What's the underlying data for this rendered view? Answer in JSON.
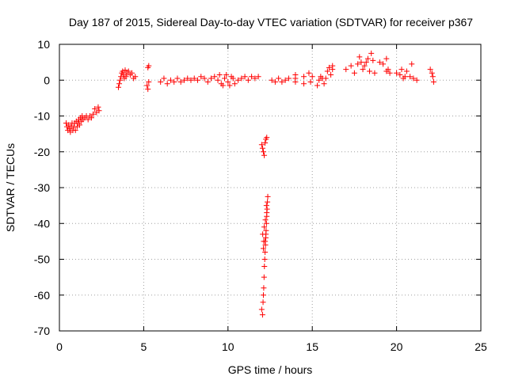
{
  "chart_data": {
    "type": "scatter",
    "title": "Day 187 of 2015, Sidereal Day-to-day VTEC variation (SDTVAR) for receiver p367",
    "xlabel": "GPS time / hours",
    "ylabel": "SDTVAR / TECUs",
    "xlim": [
      0,
      25
    ],
    "ylim": [
      -70,
      10
    ],
    "x_ticks": [
      0,
      5,
      10,
      15,
      20,
      25
    ],
    "x_tick_labels": [
      "0",
      "5",
      "10",
      "15",
      "20",
      "25"
    ],
    "y_ticks": [
      10,
      0,
      -10,
      -20,
      -30,
      -40,
      -50,
      -60,
      -70
    ],
    "y_tick_labels": [
      "10",
      "0",
      "-10",
      "-20",
      "-30",
      "-40",
      "-50",
      "-60",
      "-70"
    ],
    "grid": true,
    "marker": "plus",
    "color": "#ff0000",
    "series": [
      {
        "name": "SDTVAR",
        "points": [
          [
            0.4,
            -12
          ],
          [
            0.45,
            -13
          ],
          [
            0.5,
            -14
          ],
          [
            0.55,
            -12.5
          ],
          [
            0.6,
            -13.5
          ],
          [
            0.65,
            -14.5
          ],
          [
            0.7,
            -13
          ],
          [
            0.75,
            -12
          ],
          [
            0.8,
            -14
          ],
          [
            0.85,
            -13
          ],
          [
            0.9,
            -12
          ],
          [
            0.95,
            -14
          ],
          [
            1.0,
            -11.5
          ],
          [
            1.05,
            -13
          ],
          [
            1.1,
            -12
          ],
          [
            1.15,
            -11
          ],
          [
            1.2,
            -12.5
          ],
          [
            1.25,
            -10.5
          ],
          [
            1.3,
            -11.5
          ],
          [
            1.35,
            -10
          ],
          [
            1.4,
            -11
          ],
          [
            1.5,
            -10.5
          ],
          [
            1.6,
            -10
          ],
          [
            1.7,
            -11
          ],
          [
            1.8,
            -10
          ],
          [
            1.9,
            -10.5
          ],
          [
            2.0,
            -9.5
          ],
          [
            2.1,
            -8
          ],
          [
            2.2,
            -9
          ],
          [
            2.3,
            -7.5
          ],
          [
            2.35,
            -8.5
          ],
          [
            3.5,
            -2
          ],
          [
            3.55,
            -1
          ],
          [
            3.6,
            0
          ],
          [
            3.65,
            1
          ],
          [
            3.7,
            2
          ],
          [
            3.75,
            2.5
          ],
          [
            3.8,
            1.5
          ],
          [
            3.85,
            0.5
          ],
          [
            3.9,
            2.8
          ],
          [
            3.95,
            1
          ],
          [
            4.0,
            2
          ],
          [
            4.1,
            2.5
          ],
          [
            4.2,
            1.5
          ],
          [
            4.3,
            2
          ],
          [
            4.4,
            0.5
          ],
          [
            4.5,
            1
          ],
          [
            5.2,
            -1.5
          ],
          [
            5.25,
            -2.5
          ],
          [
            5.3,
            -0.5
          ],
          [
            5.3,
            4
          ],
          [
            5.25,
            3.5
          ],
          [
            6.0,
            -0.5
          ],
          [
            6.2,
            0.5
          ],
          [
            6.4,
            -1
          ],
          [
            6.6,
            0
          ],
          [
            6.8,
            -0.5
          ],
          [
            7.0,
            0.5
          ],
          [
            7.2,
            -0.5
          ],
          [
            7.4,
            0
          ],
          [
            7.6,
            0.5
          ],
          [
            7.8,
            0
          ],
          [
            8.0,
            0.5
          ],
          [
            8.2,
            0
          ],
          [
            8.4,
            1
          ],
          [
            8.6,
            0.5
          ],
          [
            8.8,
            -0.5
          ],
          [
            9.0,
            0.5
          ],
          [
            9.2,
            1
          ],
          [
            9.4,
            0
          ],
          [
            9.6,
            -1
          ],
          [
            9.8,
            0.5
          ],
          [
            10.0,
            -0.5
          ],
          [
            10.2,
            1
          ],
          [
            10.4,
            -1
          ],
          [
            10.6,
            0
          ],
          [
            10.8,
            0.5
          ],
          [
            11.0,
            1
          ],
          [
            11.2,
            0
          ],
          [
            11.4,
            1
          ],
          [
            11.6,
            0.5
          ],
          [
            11.8,
            1
          ],
          [
            9.5,
            1.5
          ],
          [
            9.7,
            -1.5
          ],
          [
            9.9,
            1.5
          ],
          [
            10.1,
            -1.5
          ],
          [
            10.3,
            0.5
          ],
          [
            12.0,
            -18
          ],
          [
            12.05,
            -19
          ],
          [
            12.1,
            -20
          ],
          [
            12.15,
            -21
          ],
          [
            12.2,
            -17.5
          ],
          [
            12.25,
            -16.5
          ],
          [
            12.3,
            -16
          ],
          [
            12.0,
            -64
          ],
          [
            12.05,
            -65.5
          ],
          [
            12.08,
            -62
          ],
          [
            12.1,
            -60
          ],
          [
            12.12,
            -58
          ],
          [
            12.14,
            -55
          ],
          [
            12.16,
            -52
          ],
          [
            12.18,
            -50
          ],
          [
            12.2,
            -48
          ],
          [
            12.22,
            -46
          ],
          [
            12.24,
            -44
          ],
          [
            12.26,
            -42
          ],
          [
            12.28,
            -40
          ],
          [
            12.3,
            -38
          ],
          [
            12.32,
            -36
          ],
          [
            12.34,
            -34
          ],
          [
            12.36,
            -32.5
          ],
          [
            12.2,
            -45
          ],
          [
            12.25,
            -43
          ],
          [
            12.1,
            -47
          ],
          [
            12.15,
            -41
          ],
          [
            12.22,
            -39
          ],
          [
            12.3,
            -37
          ],
          [
            12.28,
            -35
          ],
          [
            12.06,
            -43
          ],
          [
            12.12,
            -45
          ],
          [
            12.6,
            0
          ],
          [
            12.8,
            -0.5
          ],
          [
            13.0,
            0.5
          ],
          [
            13.2,
            -0.5
          ],
          [
            13.4,
            0
          ],
          [
            13.6,
            0.5
          ],
          [
            14.0,
            -0.5
          ],
          [
            14.0,
            0.5
          ],
          [
            14.0,
            1.5
          ],
          [
            14.5,
            1
          ],
          [
            14.5,
            -1
          ],
          [
            14.8,
            2
          ],
          [
            14.9,
            -0.5
          ],
          [
            15.0,
            1
          ],
          [
            15.3,
            -1.5
          ],
          [
            15.4,
            0
          ],
          [
            15.5,
            1
          ],
          [
            15.6,
            0.5
          ],
          [
            15.7,
            -1
          ],
          [
            15.8,
            0.5
          ],
          [
            15.9,
            2.5
          ],
          [
            16.0,
            3.5
          ],
          [
            16.1,
            1.5
          ],
          [
            16.2,
            3
          ],
          [
            16.2,
            4
          ],
          [
            17.0,
            3
          ],
          [
            17.3,
            4
          ],
          [
            17.5,
            2
          ],
          [
            17.7,
            4.5
          ],
          [
            17.8,
            6.5
          ],
          [
            17.9,
            5
          ],
          [
            18.0,
            3
          ],
          [
            18.1,
            4
          ],
          [
            18.2,
            5
          ],
          [
            18.3,
            6
          ],
          [
            18.4,
            2.5
          ],
          [
            18.5,
            7.5
          ],
          [
            18.6,
            5.5
          ],
          [
            18.7,
            2
          ],
          [
            19.0,
            5
          ],
          [
            19.2,
            4.5
          ],
          [
            19.4,
            6
          ],
          [
            19.5,
            3
          ],
          [
            19.6,
            2
          ],
          [
            19.4,
            2.5
          ],
          [
            20.0,
            2
          ],
          [
            20.2,
            1.5
          ],
          [
            20.3,
            3
          ],
          [
            20.4,
            0.5
          ],
          [
            20.5,
            1
          ],
          [
            20.6,
            2.5
          ],
          [
            20.8,
            1
          ],
          [
            20.9,
            4.5
          ],
          [
            21.0,
            0.5
          ],
          [
            21.2,
            0
          ],
          [
            22.0,
            3
          ],
          [
            22.1,
            2
          ],
          [
            22.15,
            1
          ],
          [
            22.2,
            -0.5
          ]
        ]
      }
    ]
  }
}
